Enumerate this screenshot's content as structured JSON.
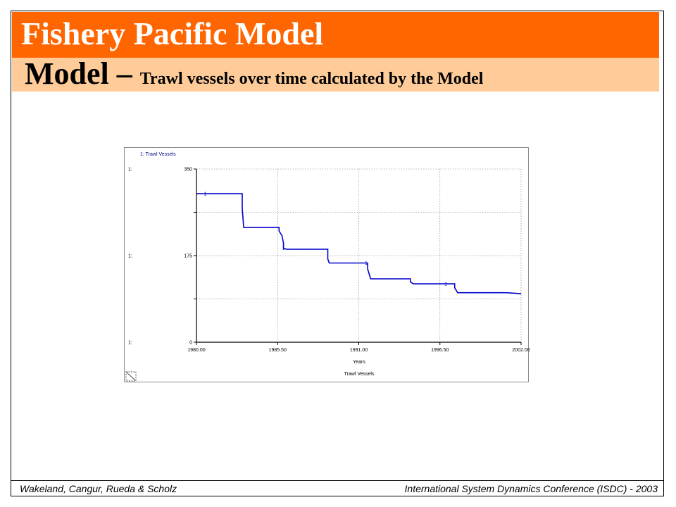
{
  "slide": {
    "title": "Fishery Pacific Model",
    "subtitle_main": "Model – ",
    "subtitle_detail": "Trawl vessels over time calculated by the Model",
    "footer_left": "Wakeland, Cangur, Rueda & Scholz",
    "footer_right": "International System Dynamics Conference (ISDC) - 2003"
  },
  "colors": {
    "title_bar": "#ff6600",
    "subtitle_bar": "#ffcc99",
    "series_line": "#0000cc"
  },
  "chart_data": {
    "type": "line",
    "legend_text": "1: Trawl Vessels",
    "xlabel": "Years",
    "caption": "Trawl Vessels",
    "xlim": [
      1980.0,
      2002.0
    ],
    "ylim": [
      0,
      350
    ],
    "x_ticks": [
      1980.0,
      1985.5,
      1991.0,
      1996.5,
      2002.0
    ],
    "x_tick_labels": [
      "1980.00",
      "1985.50",
      "1991.00",
      "1996.50",
      "2002.00"
    ],
    "y_ticks": [
      0,
      175,
      350
    ],
    "y_tick_labels": [
      "0",
      "175",
      "350"
    ],
    "y_axis_prefix": [
      "1:",
      "1:",
      "1:"
    ],
    "grid": true,
    "series": [
      {
        "name": "1",
        "marker_label": "1",
        "marker_x": [
          1980.6,
          1985.9,
          1991.5,
          1996.9
        ],
        "x": [
          1980.0,
          1983.1,
          1983.1,
          1983.2,
          1985.6,
          1985.6,
          1985.8,
          1985.9,
          1985.9,
          1986.1,
          1988.9,
          1988.9,
          1989.0,
          1991.6,
          1991.6,
          1991.8,
          1994.5,
          1994.5,
          1994.7,
          1997.5,
          1997.5,
          1997.7,
          2001.0,
          2002.0
        ],
        "y": [
          300,
          300,
          270,
          232,
          232,
          225,
          215,
          200,
          190,
          188,
          188,
          168,
          160,
          160,
          148,
          128,
          128,
          122,
          118,
          118,
          110,
          100,
          100,
          98
        ]
      }
    ]
  }
}
